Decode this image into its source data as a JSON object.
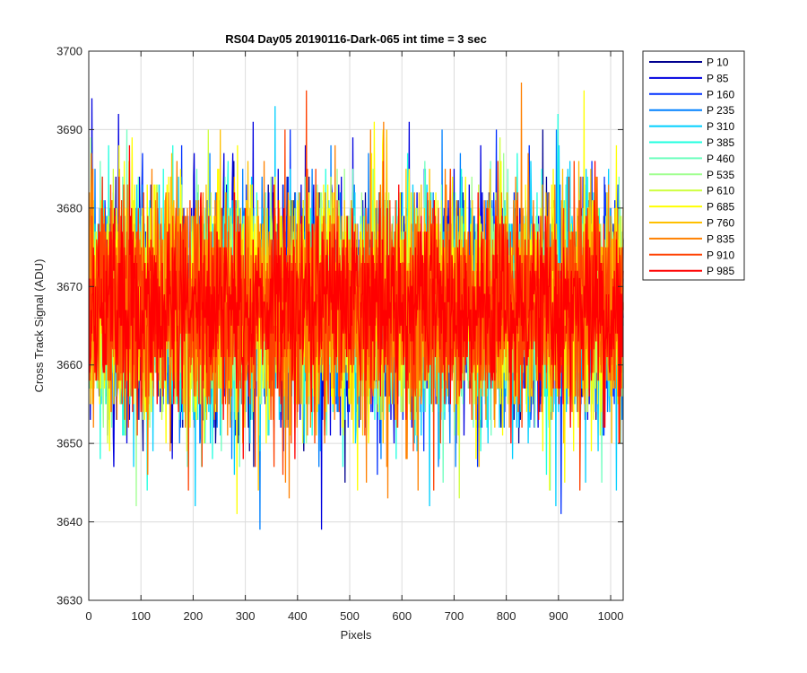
{
  "chart_data": {
    "type": "line",
    "title": "RS04 Day05 20190116-Dark-065 int time = 3 sec",
    "xlabel": "Pixels",
    "ylabel": "Cross Track Signal (ADU)",
    "xlim": [
      0,
      1024
    ],
    "ylim": [
      3630,
      3700
    ],
    "xticks": [
      0,
      100,
      200,
      300,
      400,
      500,
      600,
      700,
      800,
      900,
      1000
    ],
    "yticks": [
      3630,
      3640,
      3650,
      3660,
      3670,
      3680,
      3690,
      3700
    ],
    "x_range": [
      1,
      1024
    ],
    "grid": true,
    "legend_position": "outside-right",
    "series": [
      {
        "name": "P 10",
        "color": "#00008F",
        "mean": 3667.5,
        "min": 3645,
        "max": 3690
      },
      {
        "name": "P 85",
        "color": "#0000DF",
        "mean": 3667.5,
        "min": 3639,
        "max": 3694
      },
      {
        "name": "P 160",
        "color": "#0030FF",
        "mean": 3667.5,
        "min": 3641,
        "max": 3690
      },
      {
        "name": "P 235",
        "color": "#0080FF",
        "mean": 3667.5,
        "min": 3639,
        "max": 3690
      },
      {
        "name": "P 310",
        "color": "#00CFFF",
        "mean": 3667.5,
        "min": 3642,
        "max": 3693
      },
      {
        "name": "P 385",
        "color": "#20FFDF",
        "mean": 3667.5,
        "min": 3644,
        "max": 3692
      },
      {
        "name": "P 460",
        "color": "#70FFBF",
        "mean": 3667.5,
        "min": 3645,
        "max": 3690
      },
      {
        "name": "P 535",
        "color": "#A0FF90",
        "mean": 3667.5,
        "min": 3642,
        "max": 3689
      },
      {
        "name": "P 610",
        "color": "#CFFF40",
        "mean": 3667.5,
        "min": 3643,
        "max": 3690
      },
      {
        "name": "P 685",
        "color": "#FFFF00",
        "mean": 3667.5,
        "min": 3641,
        "max": 3695
      },
      {
        "name": "P 760",
        "color": "#FFC000",
        "mean": 3667.5,
        "min": 3644,
        "max": 3690
      },
      {
        "name": "P 835",
        "color": "#FF8000",
        "mean": 3667.5,
        "min": 3643,
        "max": 3696
      },
      {
        "name": "P 910",
        "color": "#FF4000",
        "mean": 3667.5,
        "min": 3644,
        "max": 3695
      },
      {
        "name": "P 985",
        "color": "#FF0000",
        "mean": 3667.5,
        "min": 3648,
        "max": 3688
      }
    ]
  }
}
